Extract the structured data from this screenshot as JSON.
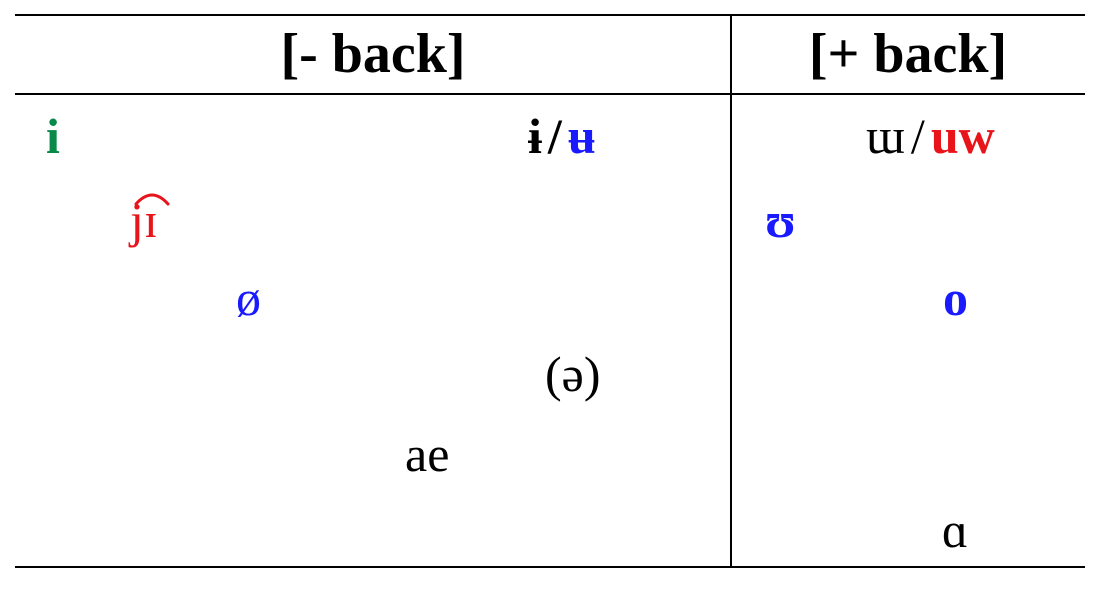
{
  "headers": {
    "minus_back": "[- back]",
    "plus_back": "[+ back]"
  },
  "colors": {
    "green": "#0a8a4a",
    "red": "#e8141a",
    "blue": "#1a1aff",
    "black": "#000000"
  },
  "front_column": {
    "i": "i",
    "barred_i": "ɨ",
    "slash": "/",
    "barred_u": "ʉ",
    "ji": "jɪ",
    "oslash": "ø",
    "schwa": "(ə)",
    "ae": "ae"
  },
  "back_column": {
    "unrounded_u": "ɯ",
    "slash": "/",
    "uw": "uw",
    "upsilon": "ʊ",
    "o": "o",
    "alpha": "ɑ"
  }
}
